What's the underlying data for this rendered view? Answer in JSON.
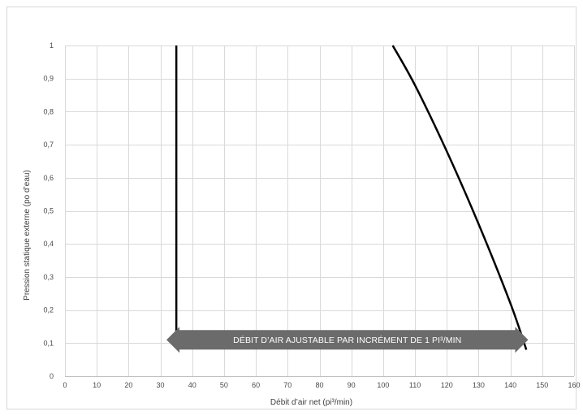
{
  "chart_data": {
    "type": "line",
    "title": "",
    "xlabel": "Débit d’air net (pi³/min)",
    "ylabel": "Pression statique externe (po d’eau)",
    "xlim": [
      0,
      160
    ],
    "ylim": [
      0,
      1
    ],
    "x_ticks": [
      0,
      10,
      20,
      30,
      40,
      50,
      60,
      70,
      80,
      90,
      100,
      110,
      120,
      130,
      140,
      150,
      160
    ],
    "y_ticks": [
      0,
      0.1,
      0.2,
      0.3,
      0.4,
      0.5,
      0.6,
      0.7,
      0.8,
      0.9,
      1
    ],
    "x_tick_labels": [
      "0",
      "10",
      "20",
      "30",
      "40",
      "50",
      "60",
      "70",
      "80",
      "90",
      "100",
      "110",
      "120",
      "130",
      "140",
      "150",
      "160"
    ],
    "y_tick_labels": [
      "0",
      "0,1",
      "0,2",
      "0,3",
      "0,4",
      "0,5",
      "0,6",
      "0,7",
      "0,8",
      "0,9",
      "1"
    ],
    "grid": true,
    "legend": "none",
    "series": [
      {
        "points": [
          [
            35,
            0.1
          ],
          [
            35,
            1.0
          ]
        ],
        "color": "#000000"
      },
      {
        "points": [
          [
            103,
            1.0
          ],
          [
            110,
            0.88
          ],
          [
            120,
            0.68
          ],
          [
            130,
            0.46
          ],
          [
            140,
            0.22
          ],
          [
            145,
            0.08
          ]
        ],
        "color": "#000000"
      }
    ],
    "annotations": [
      {
        "text": "DÉBIT D’AIR AJUSTABLE PAR INCRÉMENT DE 1 PI³/MIN",
        "x_range": [
          36,
          142
        ],
        "y": 0.115,
        "shape": "double-arrow",
        "fill": "#6b6b6b",
        "text_color": "#ffffff"
      }
    ],
    "colors": {
      "grid": "#d9d9d9",
      "axis": "#bfbfbf",
      "frame": "#d9d9d9",
      "curve": "#000000"
    }
  }
}
